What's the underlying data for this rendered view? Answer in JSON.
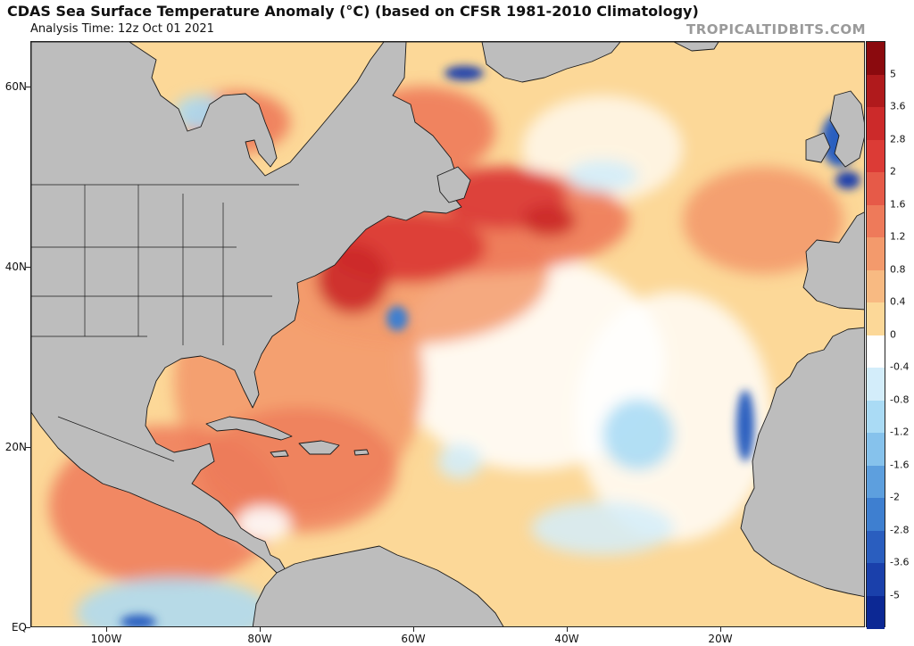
{
  "header": {
    "title": "CDAS Sea Surface Temperature Anomaly (°C) (based on CFSR 1981-2010 Climatology)",
    "analysis_time": "Analysis Time: 12z Oct 01 2021",
    "brand": "TROPICALTIDBITS.COM"
  },
  "map": {
    "projection": "equirectangular",
    "lon_range": [
      -111,
      -2
    ],
    "lat_range": [
      0,
      65
    ],
    "land_color": "#bdbdbd",
    "border_color": "#1a1a1a"
  },
  "axes": {
    "lat_ticks": [
      {
        "label": "60N",
        "value": 60
      },
      {
        "label": "40N",
        "value": 40
      },
      {
        "label": "20N",
        "value": 20
      },
      {
        "label": "EQ",
        "value": 0
      }
    ],
    "lon_ticks": [
      {
        "label": "100W",
        "value": -100
      },
      {
        "label": "80W",
        "value": -80
      },
      {
        "label": "60W",
        "value": -60
      },
      {
        "label": "40W",
        "value": -40
      },
      {
        "label": "20W",
        "value": -20
      }
    ]
  },
  "colorbar": {
    "labels": [
      "5",
      "3.6",
      "2.8",
      "2",
      "1.6",
      "1.2",
      "0.8",
      "0.4",
      "0",
      "-0.4",
      "-0.8",
      "-1.2",
      "-1.6",
      "-2",
      "-2.8",
      "-3.6",
      "-5"
    ],
    "colors": [
      "#8b0a0e",
      "#b01a1c",
      "#cc2a2a",
      "#dc3b36",
      "#e65a48",
      "#ee7a5a",
      "#f39a6c",
      "#f8ba82",
      "#fcd898",
      "#ffffff",
      "#d3edfa",
      "#aadbf5",
      "#86c2ec",
      "#5d9fde",
      "#3e7fd0",
      "#2a5ebf",
      "#1a40ab",
      "#0c2894"
    ]
  }
}
